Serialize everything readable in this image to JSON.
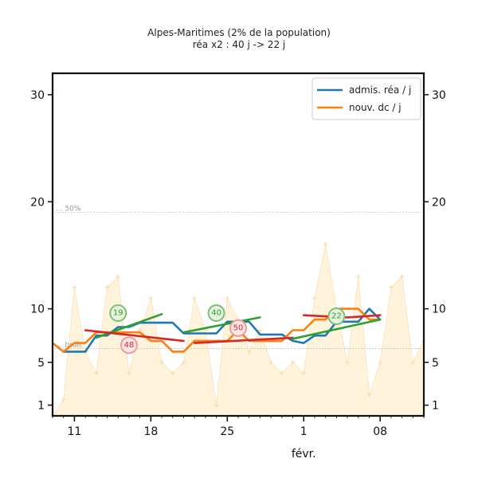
{
  "chart_data": {
    "type": "line",
    "title": "Alpes-Maritimes (2% de la population)",
    "subtitle": "réa x2 : 40 j -> 22 j",
    "x_start": "2021-01-09",
    "xticks": [
      {
        "date": "2021-01-11",
        "label": "11"
      },
      {
        "date": "2021-01-18",
        "label": "18"
      },
      {
        "date": "2021-01-25",
        "label": "25"
      },
      {
        "date": "2021-02-01",
        "label": "1"
      },
      {
        "date": "2021-02-08",
        "label": "08"
      }
    ],
    "month_label": "févr.",
    "yticks": [
      1,
      5,
      10,
      20,
      30
    ],
    "ylim": [
      0,
      32
    ],
    "xlim": [
      "2021-01-09",
      "2021-02-12"
    ],
    "reference_lines": [
      {
        "label": "50%",
        "y": 19
      },
      {
        "label": "bruit",
        "y": 6.3
      }
    ],
    "raw_deaths": [
      {
        "date": "2021-01-09",
        "value": 0
      },
      {
        "date": "2021-01-10",
        "value": 1.5
      },
      {
        "date": "2021-01-11",
        "value": 12
      },
      {
        "date": "2021-01-12",
        "value": 6
      },
      {
        "date": "2021-01-13",
        "value": 4
      },
      {
        "date": "2021-01-14",
        "value": 12
      },
      {
        "date": "2021-01-15",
        "value": 13
      },
      {
        "date": "2021-01-16",
        "value": 4
      },
      {
        "date": "2021-01-17",
        "value": 8
      },
      {
        "date": "2021-01-18",
        "value": 11
      },
      {
        "date": "2021-01-19",
        "value": 5
      },
      {
        "date": "2021-01-20",
        "value": 4
      },
      {
        "date": "2021-01-21",
        "value": 5
      },
      {
        "date": "2021-01-22",
        "value": 11
      },
      {
        "date": "2021-01-23",
        "value": 8
      },
      {
        "date": "2021-01-24",
        "value": 1
      },
      {
        "date": "2021-01-25",
        "value": 11
      },
      {
        "date": "2021-01-26",
        "value": 9
      },
      {
        "date": "2021-01-27",
        "value": 6
      },
      {
        "date": "2021-01-28",
        "value": 8
      },
      {
        "date": "2021-01-29",
        "value": 5
      },
      {
        "date": "2021-01-30",
        "value": 4
      },
      {
        "date": "2021-01-31",
        "value": 5
      },
      {
        "date": "2021-02-01",
        "value": 4
      },
      {
        "date": "2021-02-02",
        "value": 11
      },
      {
        "date": "2021-02-03",
        "value": 16
      },
      {
        "date": "2021-02-04",
        "value": 10
      },
      {
        "date": "2021-02-05",
        "value": 5
      },
      {
        "date": "2021-02-06",
        "value": 13
      },
      {
        "date": "2021-02-07",
        "value": 2
      },
      {
        "date": "2021-02-08",
        "value": 5
      },
      {
        "date": "2021-02-09",
        "value": 12
      },
      {
        "date": "2021-02-10",
        "value": 13
      },
      {
        "date": "2021-02-11",
        "value": 5
      },
      {
        "date": "2021-02-12",
        "value": 7
      }
    ],
    "series": [
      {
        "name": "admis. réa / j",
        "color": "#1f77b4",
        "points": [
          {
            "date": "2021-01-09",
            "value": 6.8
          },
          {
            "date": "2021-01-10",
            "value": 6.0
          },
          {
            "date": "2021-01-11",
            "value": 6.0
          },
          {
            "date": "2021-01-12",
            "value": 6.0
          },
          {
            "date": "2021-01-13",
            "value": 7.5
          },
          {
            "date": "2021-01-14",
            "value": 7.5
          },
          {
            "date": "2021-01-15",
            "value": 8.3
          },
          {
            "date": "2021-01-16",
            "value": 8.3
          },
          {
            "date": "2021-01-17",
            "value": 8.7
          },
          {
            "date": "2021-01-18",
            "value": 8.7
          },
          {
            "date": "2021-01-19",
            "value": 8.7
          },
          {
            "date": "2021-01-20",
            "value": 8.7
          },
          {
            "date": "2021-01-21",
            "value": 7.7
          },
          {
            "date": "2021-01-22",
            "value": 7.7
          },
          {
            "date": "2021-01-23",
            "value": 7.7
          },
          {
            "date": "2021-01-24",
            "value": 7.7
          },
          {
            "date": "2021-01-25",
            "value": 8.8
          },
          {
            "date": "2021-01-26",
            "value": 8.8
          },
          {
            "date": "2021-01-27",
            "value": 8.8
          },
          {
            "date": "2021-01-28",
            "value": 7.6
          },
          {
            "date": "2021-01-29",
            "value": 7.6
          },
          {
            "date": "2021-01-30",
            "value": 7.6
          },
          {
            "date": "2021-01-31",
            "value": 7.0
          },
          {
            "date": "2021-02-01",
            "value": 6.8
          },
          {
            "date": "2021-02-02",
            "value": 7.5
          },
          {
            "date": "2021-02-03",
            "value": 7.5
          },
          {
            "date": "2021-02-04",
            "value": 8.8
          },
          {
            "date": "2021-02-05",
            "value": 8.8
          },
          {
            "date": "2021-02-06",
            "value": 8.8
          },
          {
            "date": "2021-02-07",
            "value": 10.0
          },
          {
            "date": "2021-02-08",
            "value": 9.0
          }
        ]
      },
      {
        "name": "nouv. dc / j",
        "color": "#ff7f0e",
        "points": [
          {
            "date": "2021-01-09",
            "value": 6.8
          },
          {
            "date": "2021-01-10",
            "value": 6.0
          },
          {
            "date": "2021-01-11",
            "value": 6.8
          },
          {
            "date": "2021-01-12",
            "value": 6.8
          },
          {
            "date": "2021-01-13",
            "value": 7.8
          },
          {
            "date": "2021-01-14",
            "value": 7.8
          },
          {
            "date": "2021-01-15",
            "value": 7.8
          },
          {
            "date": "2021-01-16",
            "value": 7.8
          },
          {
            "date": "2021-01-17",
            "value": 7.8
          },
          {
            "date": "2021-01-18",
            "value": 7.0
          },
          {
            "date": "2021-01-19",
            "value": 7.0
          },
          {
            "date": "2021-01-20",
            "value": 6.0
          },
          {
            "date": "2021-01-21",
            "value": 6.0
          },
          {
            "date": "2021-01-22",
            "value": 7.0
          },
          {
            "date": "2021-01-23",
            "value": 7.0
          },
          {
            "date": "2021-01-24",
            "value": 7.0
          },
          {
            "date": "2021-01-25",
            "value": 7.0
          },
          {
            "date": "2021-01-26",
            "value": 8.0
          },
          {
            "date": "2021-01-27",
            "value": 7.0
          },
          {
            "date": "2021-01-28",
            "value": 7.0
          },
          {
            "date": "2021-01-29",
            "value": 7.0
          },
          {
            "date": "2021-01-30",
            "value": 7.0
          },
          {
            "date": "2021-01-31",
            "value": 8.0
          },
          {
            "date": "2021-02-01",
            "value": 8.0
          },
          {
            "date": "2021-02-02",
            "value": 9.0
          },
          {
            "date": "2021-02-03",
            "value": 9.0
          },
          {
            "date": "2021-02-04",
            "value": 10.0
          },
          {
            "date": "2021-02-05",
            "value": 10.0
          },
          {
            "date": "2021-02-06",
            "value": 10.0
          },
          {
            "date": "2021-02-07",
            "value": 9.0
          },
          {
            "date": "2021-02-08",
            "value": 9.0
          }
        ]
      }
    ],
    "trends": [
      {
        "color": "#2ca02c",
        "badge": "19",
        "badge_at": {
          "date": "2021-01-15",
          "value": 9.6
        },
        "points": [
          {
            "date": "2021-01-13",
            "value": 7.3
          },
          {
            "date": "2021-01-19",
            "value": 9.5
          }
        ]
      },
      {
        "color": "#d62728",
        "badge": "48",
        "badge_at": {
          "date": "2021-01-16",
          "value": 6.6
        },
        "points": [
          {
            "date": "2021-01-12",
            "value": 8.0
          },
          {
            "date": "2021-01-21",
            "value": 7.0
          }
        ]
      },
      {
        "color": "#2ca02c",
        "badge": "40",
        "badge_at": {
          "date": "2021-01-24",
          "value": 9.6
        },
        "points": [
          {
            "date": "2021-01-21",
            "value": 7.8
          },
          {
            "date": "2021-01-28",
            "value": 9.2
          }
        ]
      },
      {
        "color": "#d62728",
        "badge": "50",
        "badge_at": {
          "date": "2021-01-26",
          "value": 8.2
        },
        "points": [
          {
            "date": "2021-01-22",
            "value": 6.8
          },
          {
            "date": "2021-01-31",
            "value": 7.3
          }
        ]
      },
      {
        "color": "#2ca02c",
        "badge": "22",
        "badge_at": {
          "date": "2021-02-04",
          "value": 9.3
        },
        "points": [
          {
            "date": "2021-01-31",
            "value": 7.2
          },
          {
            "date": "2021-02-08",
            "value": 9.0
          }
        ]
      },
      {
        "color": "#d62728",
        "badge": "",
        "points": [
          {
            "date": "2021-02-01",
            "value": 9.4
          },
          {
            "date": "2021-02-05",
            "value": 9.2
          },
          {
            "date": "2021-02-08",
            "value": 9.4
          }
        ]
      }
    ],
    "legend": {
      "placement": "top-right",
      "entries": [
        "admis. réa / j",
        "nouv. dc / j"
      ]
    },
    "colors": {
      "fill": "#fff3dc",
      "raw_marker": "#f7d9a8",
      "refline": "#aaaaaa"
    }
  }
}
